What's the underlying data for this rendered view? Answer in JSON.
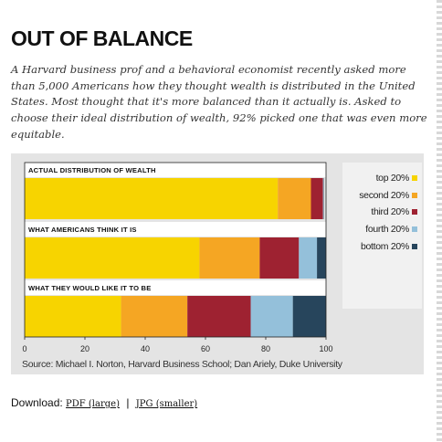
{
  "title": "OUT OF BALANCE",
  "intro": "A Harvard business prof and a behavioral economist recently asked more than 5,000 Americans how they thought wealth is distributed in the United States. Most thought that it's more balanced than it actually is. Asked to choose their ideal distribution of wealth, 92% picked one that was even more equitable.",
  "chart_data": {
    "type": "bar",
    "orientation": "horizontal",
    "stacked": true,
    "categories": [
      "ACTUAL DISTRIBUTION OF WEALTH",
      "WHAT AMERICANS THINK IT IS",
      "WHAT THEY WOULD LIKE IT TO BE"
    ],
    "series": [
      {
        "name": "top 20%",
        "color": "#f7d400",
        "values": [
          84,
          58,
          32
        ]
      },
      {
        "name": "second 20%",
        "color": "#f5a623",
        "values": [
          11,
          20,
          22
        ]
      },
      {
        "name": "third 20%",
        "color": "#9e2231",
        "values": [
          4,
          13,
          21
        ]
      },
      {
        "name": "fourth 20%",
        "color": "#94c0da",
        "values": [
          0.2,
          6,
          14
        ]
      },
      {
        "name": "bottom 20%",
        "color": "#27455c",
        "values": [
          0.1,
          3,
          11
        ]
      }
    ],
    "xlim": [
      0,
      100
    ],
    "xticks": [
      0,
      20,
      40,
      60,
      80,
      100
    ],
    "legend": "right"
  },
  "source": "Source: Michael I. Norton, Harvard Business School; Dan Ariely, Duke University",
  "download": {
    "label": "Download:",
    "pdf": "PDF (large)",
    "separator": "|",
    "jpg": "JPG (smaller)"
  }
}
